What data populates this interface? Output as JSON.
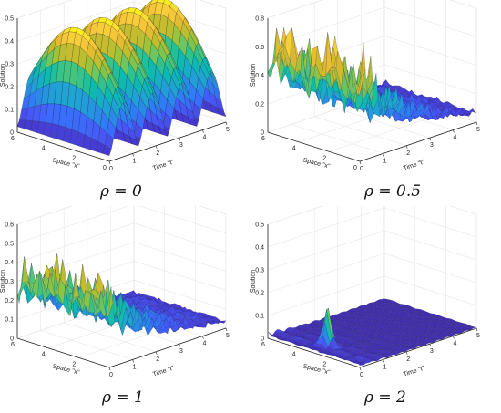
{
  "chart_data": [
    {
      "type": "surface",
      "caption": "ρ = 0",
      "zlabel": "Solution",
      "xlabel": "Time \"t\"",
      "ylabel": "Space \"x\"",
      "t_ticks": [
        "0",
        "1",
        "2",
        "3",
        "4",
        "5"
      ],
      "x_ticks": [
        "0",
        "2",
        "4",
        "6"
      ],
      "z_ticks": [
        "0",
        "0.1",
        "0.2",
        "0.3",
        "0.4",
        "0.5"
      ],
      "zlim": [
        0,
        0.5
      ],
      "surface": "periodic",
      "peak": 0.5,
      "waves": 4
    },
    {
      "type": "surface",
      "caption": "ρ = 0.5",
      "zlabel": "Solution",
      "xlabel": "Time \"t\"",
      "ylabel": "Space \"x\"",
      "t_ticks": [
        "0",
        "1",
        "2",
        "3",
        "4",
        "5"
      ],
      "x_ticks": [
        "0",
        "2",
        "4",
        "6"
      ],
      "z_ticks": [
        "0",
        "0.2",
        "0.4",
        "0.6",
        "0.8"
      ],
      "zlim": [
        0,
        0.8
      ],
      "surface": "decaying",
      "peak": 0.72,
      "decay": 2.2
    },
    {
      "type": "surface",
      "caption": "ρ = 1",
      "zlabel": "Solution",
      "xlabel": "Time \"t\"",
      "ylabel": "Space \"x\"",
      "t_ticks": [
        "0",
        "1",
        "2",
        "3",
        "4",
        "5"
      ],
      "x_ticks": [
        "2",
        "4",
        "6"
      ],
      "z_ticks": [
        "0",
        "0.1",
        "0.2",
        "0.3",
        "0.4",
        "0.5",
        "0.6"
      ],
      "zlim": [
        0,
        0.6
      ],
      "surface": "decaying",
      "peak": 0.45,
      "decay": 2.3
    },
    {
      "type": "surface",
      "caption": "ρ = 2",
      "zlabel": "Solution",
      "xlabel": "Time \"t\"",
      "ylabel": "Space \"x\"",
      "t_ticks": [
        "0",
        "1",
        "2",
        "3",
        "4",
        "5"
      ],
      "x_ticks": [
        "2",
        "4",
        "6"
      ],
      "z_ticks": [
        "0",
        "0.1",
        "0.2",
        "0.3",
        "0.4",
        "0.5"
      ],
      "zlim": [
        0,
        0.5
      ],
      "surface": "spike",
      "peak": 0.17,
      "spike_t": 0.6,
      "spike_x": 0.5
    }
  ]
}
